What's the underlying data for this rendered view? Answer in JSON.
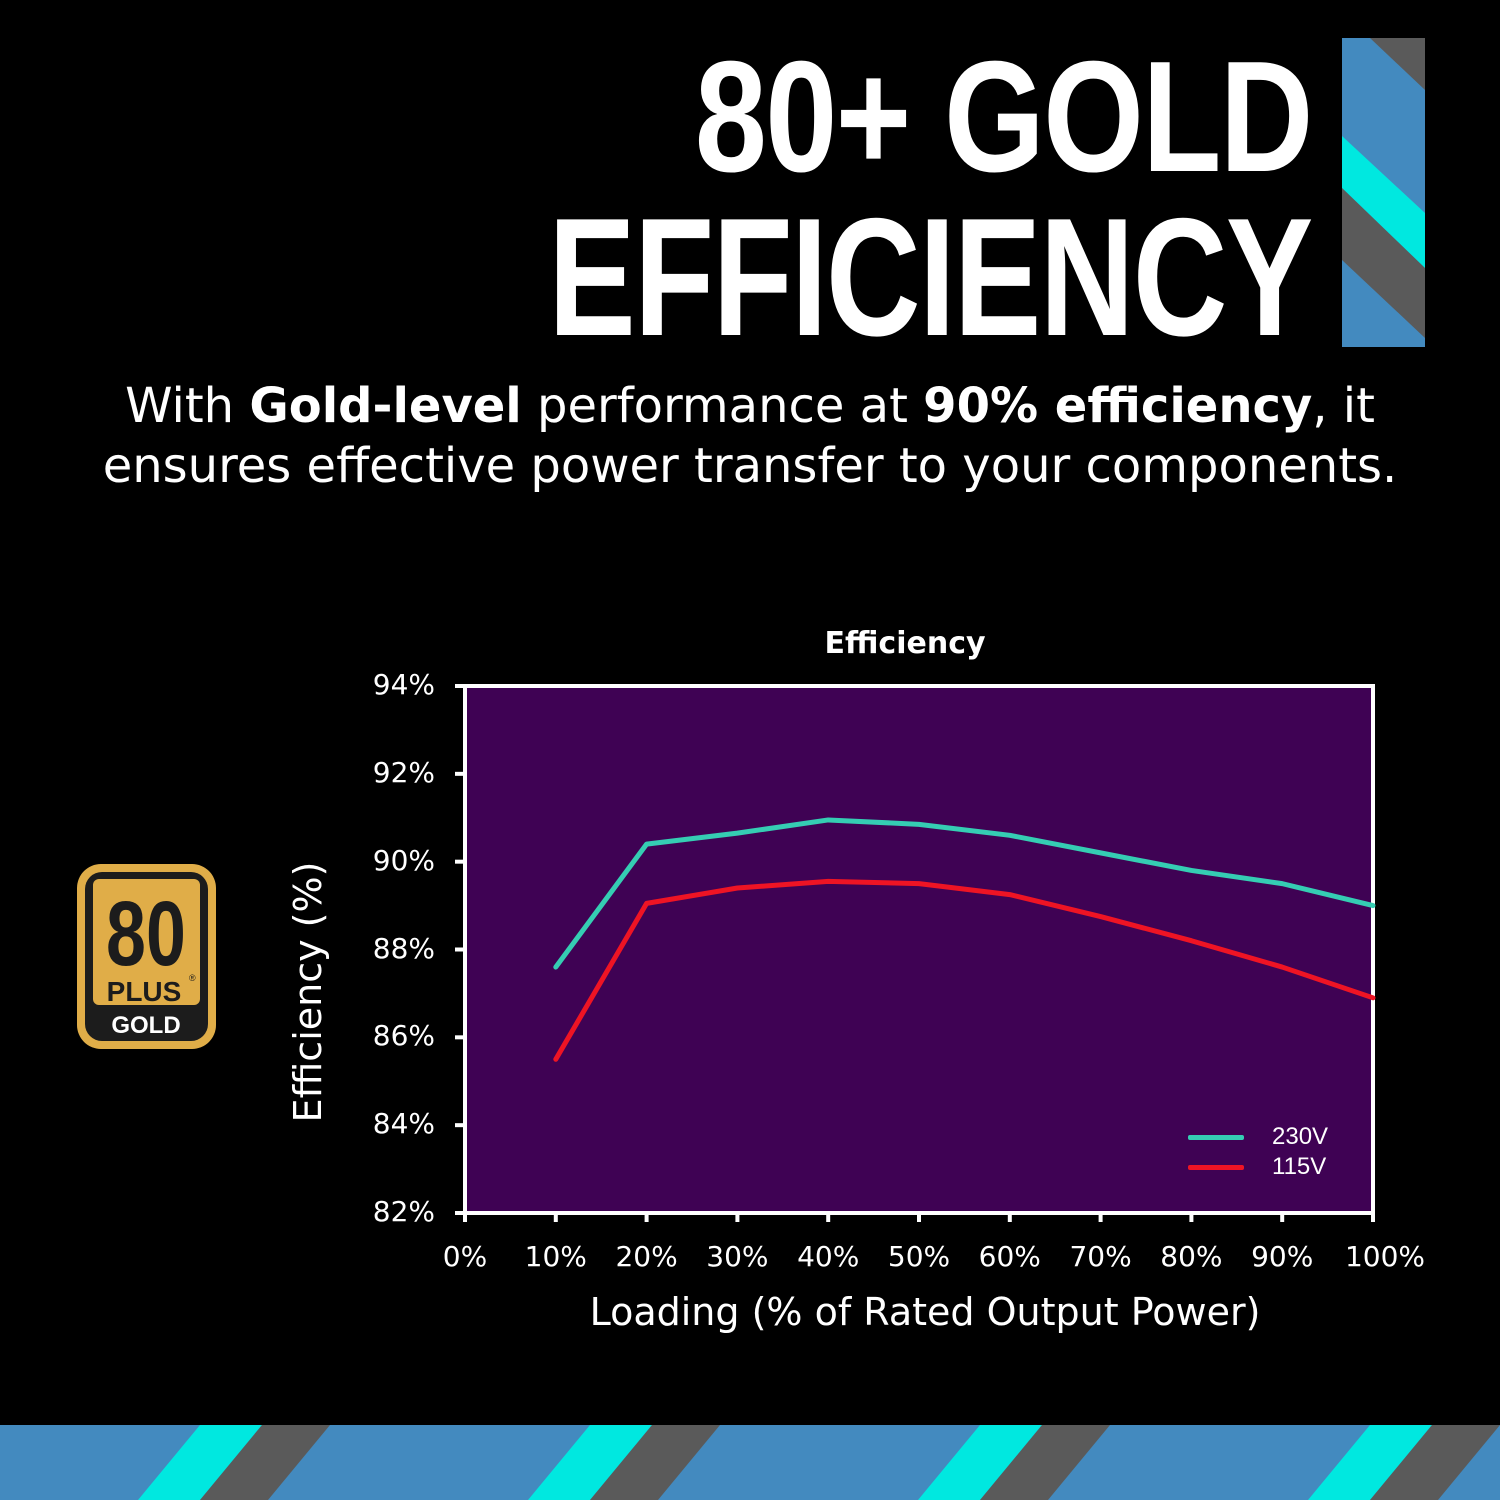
{
  "header": {
    "headline_line1": "80+ GOLD",
    "headline_line2": "EFFICIENCY"
  },
  "subtitle": {
    "part1": "With ",
    "bold1": "Gold-level",
    "part2": " performance at ",
    "bold2": "90% efficiency",
    "part3": ", it ensures effective power transfer to your components."
  },
  "badge": {
    "number": "80",
    "plus": "PLUS",
    "registered": "®",
    "tier": "GOLD",
    "gold_color": "#e0ad48",
    "dark_color": "#1c1c1c"
  },
  "colors": {
    "background": "#000000",
    "plot_bg": "#3f0254",
    "stripe_blue": "#438abf",
    "stripe_cyan": "#00e8e0",
    "stripe_gray": "#5a5a5a",
    "series_230": "#35cdb3",
    "series_115": "#ee1424"
  },
  "chart_data": {
    "type": "line",
    "title": "Efficiency",
    "xlabel": "Loading (% of Rated Output Power)",
    "ylabel": "Efficiency (%)",
    "x_ticks": [
      "0%",
      "10%",
      "20%",
      "30%",
      "40%",
      "50%",
      "60%",
      "70%",
      "80%",
      "90%",
      "100%"
    ],
    "y_ticks": [
      "94%",
      "92%",
      "90%",
      "88%",
      "86%",
      "84%",
      "82%"
    ],
    "xlim": [
      0,
      100
    ],
    "ylim": [
      82,
      94
    ],
    "grid": false,
    "legend_position": "lower right",
    "x": [
      10,
      20,
      30,
      40,
      50,
      60,
      70,
      80,
      90,
      100
    ],
    "series": [
      {
        "name": "230V",
        "color": "#35cdb3",
        "values": [
          87.6,
          90.4,
          90.65,
          90.95,
          90.85,
          90.6,
          90.2,
          89.8,
          89.5,
          89.0
        ]
      },
      {
        "name": "115V",
        "color": "#ee1424",
        "values": [
          85.5,
          89.05,
          89.4,
          89.55,
          89.5,
          89.25,
          88.75,
          88.2,
          87.6,
          86.9
        ]
      }
    ]
  }
}
